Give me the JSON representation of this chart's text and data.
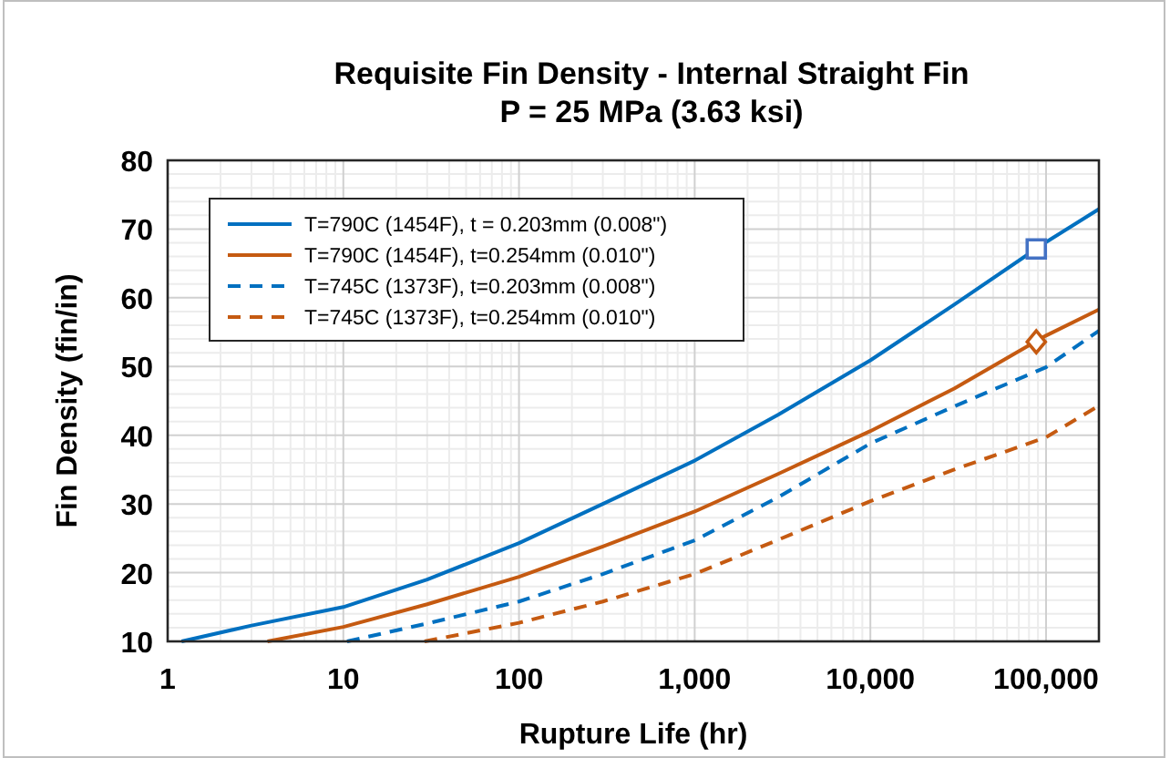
{
  "chart_data": {
    "type": "line",
    "title": "Requisite Fin Density - Internal Straight Fin",
    "subtitle": "P = 25 MPa (3.63 ksi)",
    "xlabel": "Rupture Life (hr)",
    "ylabel": "Fin Density (fin/in)",
    "log": "x",
    "xlim": [
      1,
      200000
    ],
    "ylim": [
      10,
      80
    ],
    "xticks": [
      1,
      10,
      100,
      {
        "value": 1000,
        "label": "1,000"
      },
      {
        "value": 10000,
        "label": "10,000"
      },
      {
        "value": 100000,
        "label": "100,000"
      }
    ],
    "yticks": [
      10,
      20,
      30,
      40,
      50,
      60,
      70,
      80
    ],
    "grid": true,
    "legend": "top left",
    "marker": "none",
    "series": [
      {
        "name": "T=790C (1454F), t = 0.203mm (0.008\")",
        "color": "#0070c0",
        "line_style": "solid",
        "x": [
          1.2,
          3,
          10,
          30,
          100,
          300,
          1000,
          3000,
          10000,
          30000,
          100000,
          200000
        ],
        "values": [
          10,
          12.3,
          15,
          19,
          24.3,
          30,
          36.3,
          43,
          50.9,
          59,
          68.1,
          72.9
        ]
      },
      {
        "name": "T=790C (1454F), t=0.254mm (0.010\")",
        "color": "#c55a11",
        "line_style": "solid",
        "x": [
          3.7,
          10,
          30,
          100,
          300,
          1000,
          3000,
          10000,
          30000,
          100000,
          200000
        ],
        "values": [
          10,
          12.1,
          15.4,
          19.4,
          23.8,
          28.9,
          34.4,
          40.6,
          46.8,
          54.5,
          58.3
        ]
      },
      {
        "name": "T=745C (1373F), t=0.203mm (0.008\")",
        "color": "#0070c0",
        "line_style": "dashed",
        "x": [
          10.5,
          30,
          100,
          300,
          1000,
          3000,
          10000,
          30000,
          100000,
          200000
        ],
        "values": [
          10,
          12.6,
          15.8,
          19.8,
          24.7,
          31,
          38.8,
          44.2,
          49.9,
          55.2
        ]
      },
      {
        "name": "T=745C (1373F), t=0.254mm (0.010\")",
        "color": "#c55a11",
        "line_style": "dashed",
        "x": [
          29,
          100,
          300,
          1000,
          3000,
          10000,
          30000,
          100000,
          200000
        ],
        "values": [
          10,
          12.7,
          15.8,
          19.8,
          24.8,
          30.4,
          35,
          39.7,
          44.3
        ]
      },
      {
        "type": "scatter",
        "marker": "square",
        "color": "#4472c4",
        "x": [
          88000
        ],
        "values": [
          67.1
        ]
      },
      {
        "type": "scatter",
        "marker": "diamond",
        "color": "#c55a11",
        "x": [
          88000
        ],
        "values": [
          53.6
        ]
      }
    ]
  }
}
